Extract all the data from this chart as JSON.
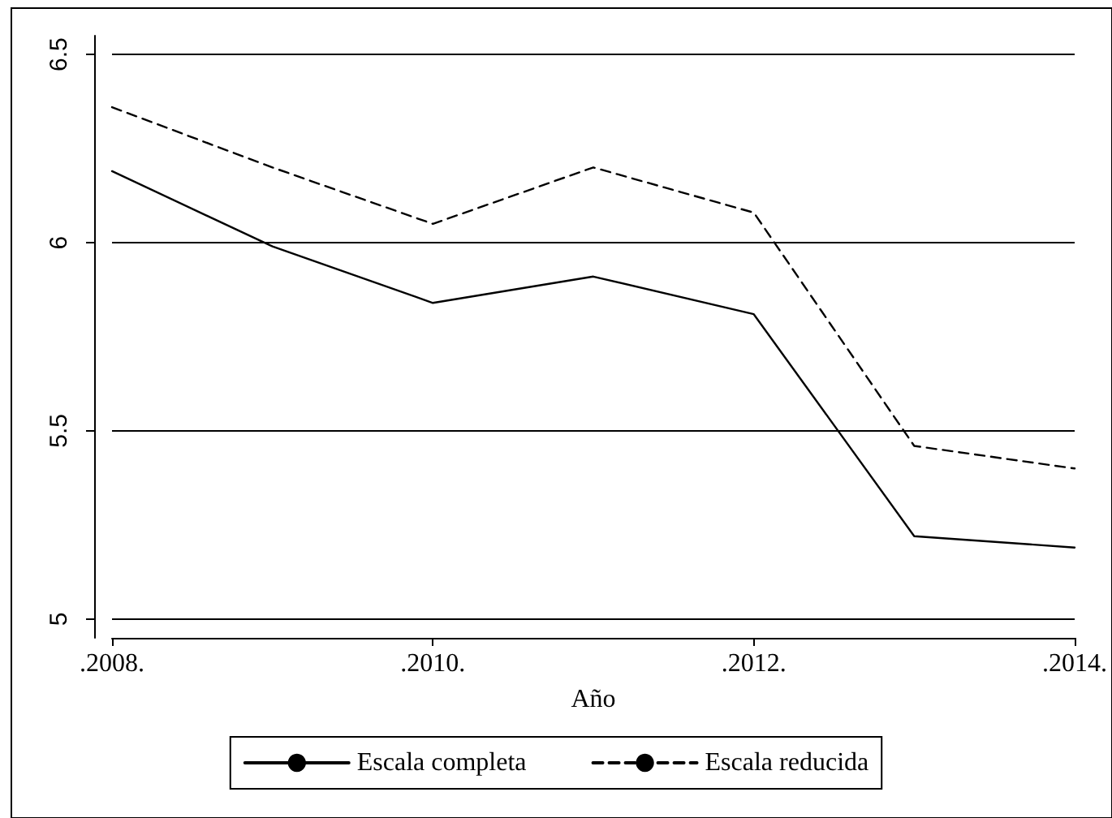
{
  "chart_data": {
    "type": "line",
    "xlabel": "Año",
    "categories": [
      ".2008.",
      null,
      ".2010.",
      null,
      ".2012.",
      null,
      ".2014."
    ],
    "series": [
      {
        "name": "Escala completa",
        "color": "#000000",
        "line_style": "solid",
        "values": [
          6.19,
          5.99,
          5.84,
          5.91,
          5.81,
          5.22,
          5.19
        ]
      },
      {
        "name": "Escala reducida",
        "color": "#000000",
        "line_style": "dashed",
        "values": [
          6.36,
          6.2,
          6.05,
          6.2,
          6.08,
          5.46,
          5.4
        ]
      }
    ],
    "ylim": [
      4.95,
      6.55
    ],
    "yticks": [
      5,
      5.5,
      6,
      6.5
    ],
    "grid": "y",
    "legend": "bottom",
    "marker": "none"
  }
}
